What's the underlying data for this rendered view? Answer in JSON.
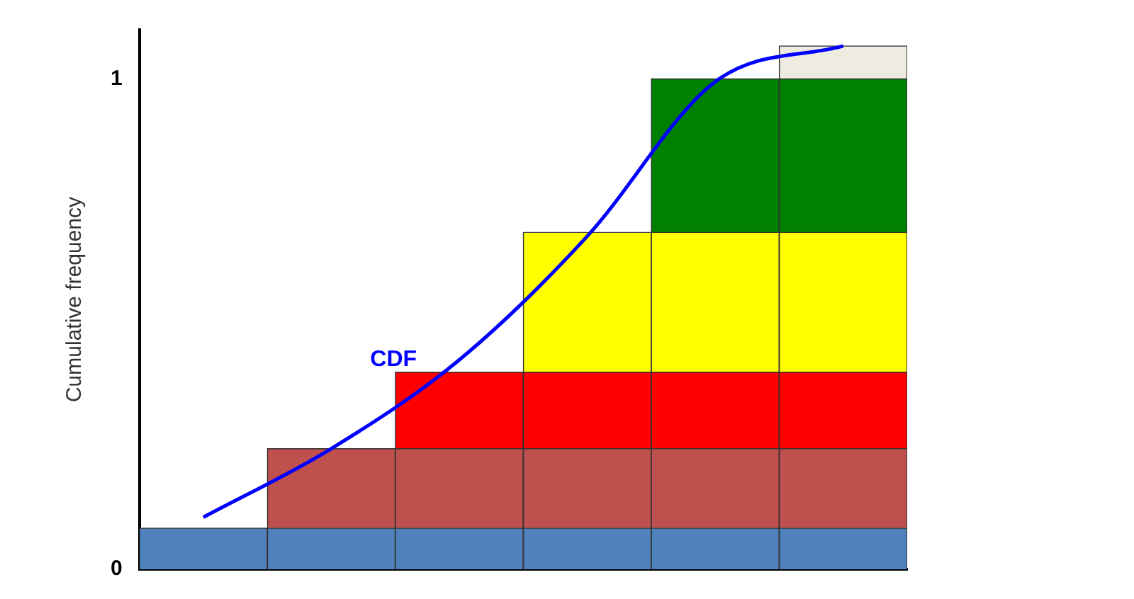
{
  "chart_data": {
    "type": "bar",
    "stacked": true,
    "ylabel": "Cumulative frequency",
    "categories": [
      null,
      null,
      null,
      null,
      null,
      null
    ],
    "ylim": [
      0,
      1.1
    ],
    "yticks": [
      0,
      1
    ],
    "tick_labels": "y",
    "grid": false,
    "legend": false,
    "series": [
      {
        "color": "#4f81bd",
        "values": [
          0.084,
          0.084,
          0.084,
          0.084,
          0.084,
          0.084
        ]
      },
      {
        "color": "#c0504d",
        "values": [
          null,
          0.162,
          0.162,
          0.162,
          0.162,
          0.162
        ]
      },
      {
        "color": "#ff0000",
        "values": [
          null,
          null,
          0.156,
          0.156,
          0.156,
          0.156
        ]
      },
      {
        "color": "#ffff00",
        "values": [
          null,
          null,
          null,
          0.285,
          0.285,
          0.285
        ]
      },
      {
        "color": "#008000",
        "values": [
          null,
          null,
          null,
          null,
          0.313,
          0.313
        ]
      },
      {
        "color": "#eeece1",
        "values": [
          null,
          null,
          null,
          null,
          null,
          0.067
        ]
      },
      {
        "type": "line",
        "name": "CDF",
        "color": "#0000ff",
        "marker": "none",
        "values": [
          0.106,
          0.246,
          0.427,
          0.679,
          0.994,
          1.067
        ]
      }
    ]
  }
}
